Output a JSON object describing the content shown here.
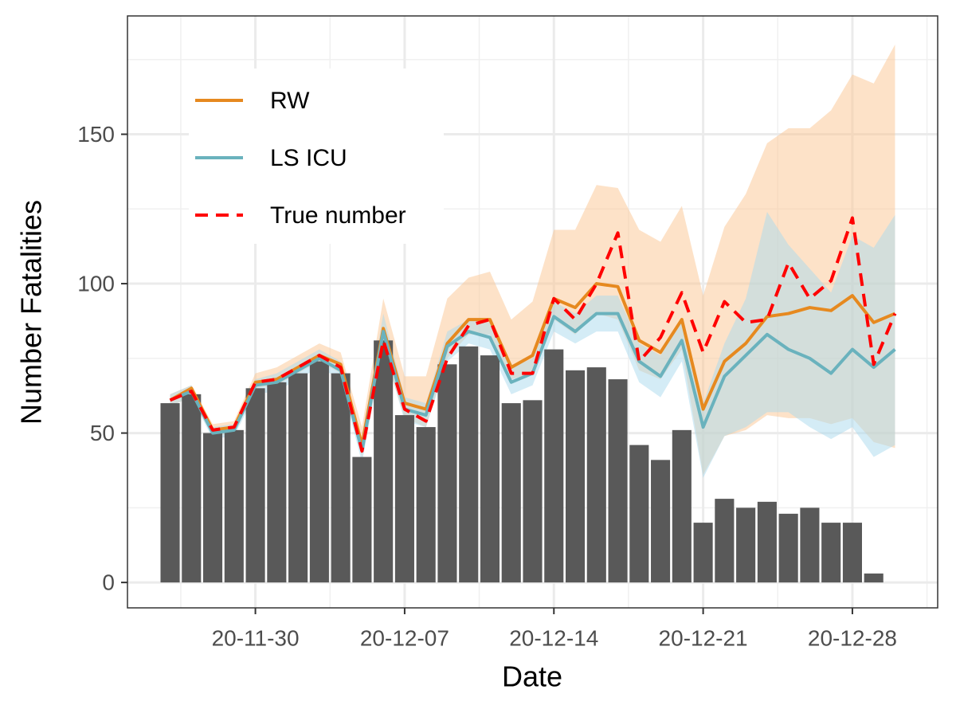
{
  "chart_data": {
    "type": "line",
    "xlabel": "Date",
    "ylabel": "Number Fatalities",
    "x": [
      "20-11-26",
      "20-11-27",
      "20-11-28",
      "20-11-29",
      "20-11-30",
      "20-12-01",
      "20-12-02",
      "20-12-03",
      "20-12-04",
      "20-12-05",
      "20-12-06",
      "20-12-07",
      "20-12-08",
      "20-12-09",
      "20-12-10",
      "20-12-11",
      "20-12-12",
      "20-12-13",
      "20-12-14",
      "20-12-15",
      "20-12-16",
      "20-12-17",
      "20-12-18",
      "20-12-19",
      "20-12-20",
      "20-12-21",
      "20-12-22",
      "20-12-23",
      "20-12-24",
      "20-12-25",
      "20-12-26",
      "20-12-27",
      "20-12-28",
      "20-12-29",
      "20-12-30"
    ],
    "xlim": [
      "20-11-24",
      "21-01-01"
    ],
    "xticks": [
      "20-11-30",
      "20-12-07",
      "20-12-14",
      "20-12-21",
      "20-12-28"
    ],
    "ylim": [
      -8.5,
      189.6
    ],
    "yticks": [
      0,
      50,
      100,
      150
    ],
    "grid": true,
    "legend": "top-left",
    "bars": {
      "color": "#595959",
      "values": [
        60,
        63,
        50,
        51,
        65,
        67,
        70,
        74,
        70,
        42,
        81,
        56,
        52,
        73,
        79,
        76,
        60,
        61,
        78,
        71,
        72,
        68,
        46,
        41,
        51,
        20,
        28,
        25,
        27,
        23,
        25,
        20,
        20,
        3,
        null
      ]
    },
    "series": [
      {
        "name": "RW",
        "color": "#e6891f",
        "band_color": "#fcc592",
        "values": [
          61,
          65,
          51,
          52,
          67,
          68,
          72,
          76,
          73,
          46,
          85,
          60,
          58,
          80,
          88,
          88,
          72,
          76,
          95,
          92,
          100,
          99,
          81,
          77,
          88,
          58,
          74,
          80,
          89,
          90,
          92,
          91,
          96,
          87,
          90
        ],
        "upper": [
          63,
          66,
          53,
          54,
          70,
          72,
          76,
          80,
          77,
          52,
          95,
          69,
          69,
          95,
          102,
          104,
          88,
          94,
          118,
          118,
          133,
          132,
          118,
          114,
          126,
          96,
          119,
          130,
          147,
          152,
          152,
          158,
          170,
          167,
          180
        ],
        "lower": [
          59,
          62,
          49,
          50,
          65,
          66,
          70,
          74,
          70,
          42,
          78,
          55,
          52,
          75,
          83,
          83,
          68,
          70,
          88,
          83,
          90,
          88,
          71,
          68,
          78,
          36,
          49,
          51,
          56,
          55,
          55,
          53,
          55,
          47,
          45
        ]
      },
      {
        "name": "LS ICU",
        "color": "#6ab2bd",
        "band_color": "#a9d9ee",
        "values": [
          61,
          64,
          50,
          51,
          66,
          67,
          71,
          75,
          71,
          44,
          84,
          58,
          56,
          79,
          84,
          82,
          67,
          70,
          89,
          84,
          90,
          90,
          74,
          69,
          81,
          52,
          69,
          76,
          83,
          78,
          75,
          70,
          78,
          72,
          78
        ],
        "upper": [
          63,
          66,
          52,
          53,
          68,
          70,
          74,
          78,
          74,
          48,
          90,
          62,
          60,
          84,
          88,
          87,
          72,
          75,
          94,
          90,
          96,
          96,
          80,
          76,
          88,
          60,
          80,
          95,
          124,
          113,
          105,
          97,
          116,
          112,
          123
        ],
        "lower": [
          59,
          62,
          48,
          49,
          63,
          64,
          68,
          72,
          68,
          40,
          79,
          54,
          52,
          74,
          80,
          78,
          63,
          66,
          84,
          80,
          84,
          84,
          67,
          62,
          74,
          35,
          49,
          52,
          57,
          57,
          52,
          48,
          52,
          42,
          46
        ]
      },
      {
        "name": "True number",
        "color": "#ff0000",
        "dashed": true,
        "values": [
          61,
          64,
          51,
          52,
          67,
          68,
          72,
          76,
          72,
          44,
          81,
          58,
          54,
          75,
          86,
          88,
          70,
          70,
          95,
          88,
          100,
          117,
          74,
          82,
          97,
          77,
          94,
          87,
          88,
          107,
          95,
          101,
          122,
          73,
          90
        ]
      }
    ]
  }
}
